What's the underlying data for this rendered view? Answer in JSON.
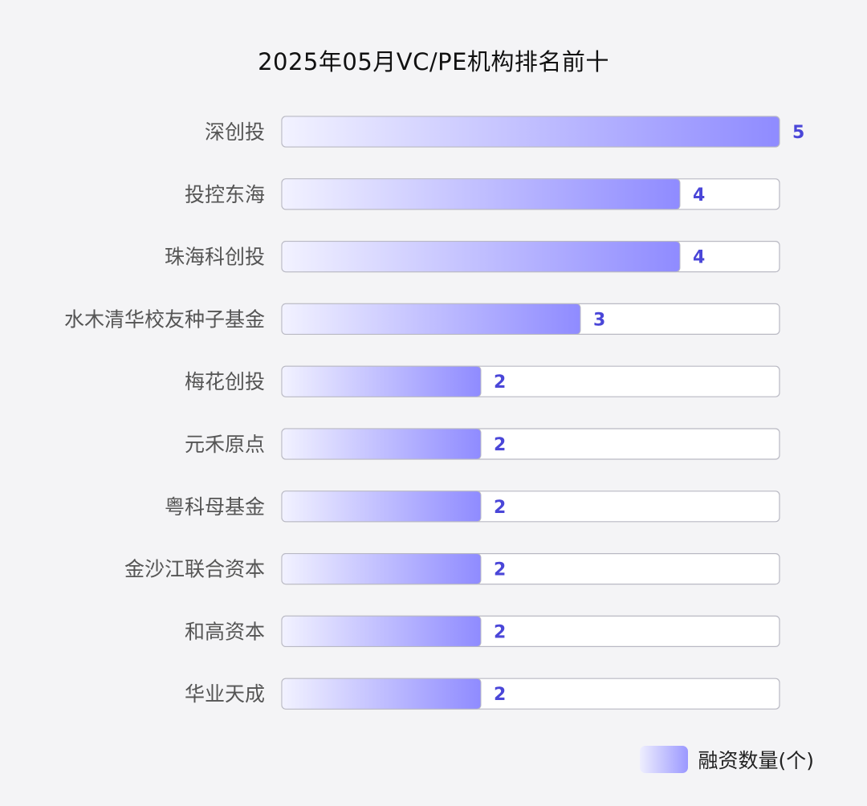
{
  "chart_data": {
    "type": "bar",
    "orientation": "horizontal",
    "title": "2025年05月VC/PE机构排名前十",
    "categories": [
      "深创投",
      "投控东海",
      "珠海科创投",
      "水木清华校友种子基金",
      "梅花创投",
      "元禾原点",
      "粤科母基金",
      "金沙江联合资本",
      "和高资本",
      "华业天成"
    ],
    "series": [
      {
        "name": "融资数量(个)",
        "values": [
          5,
          4,
          4,
          3,
          2,
          2,
          2,
          2,
          2,
          2
        ]
      }
    ],
    "xlim": [
      0,
      5
    ],
    "grid": false,
    "legend": "bottom-right",
    "colors": {
      "bar_start": "#f2f2ff",
      "bar_end": "#8f8bff",
      "track_border": "#b9b9c3",
      "value_text": "#4a46d8"
    }
  }
}
